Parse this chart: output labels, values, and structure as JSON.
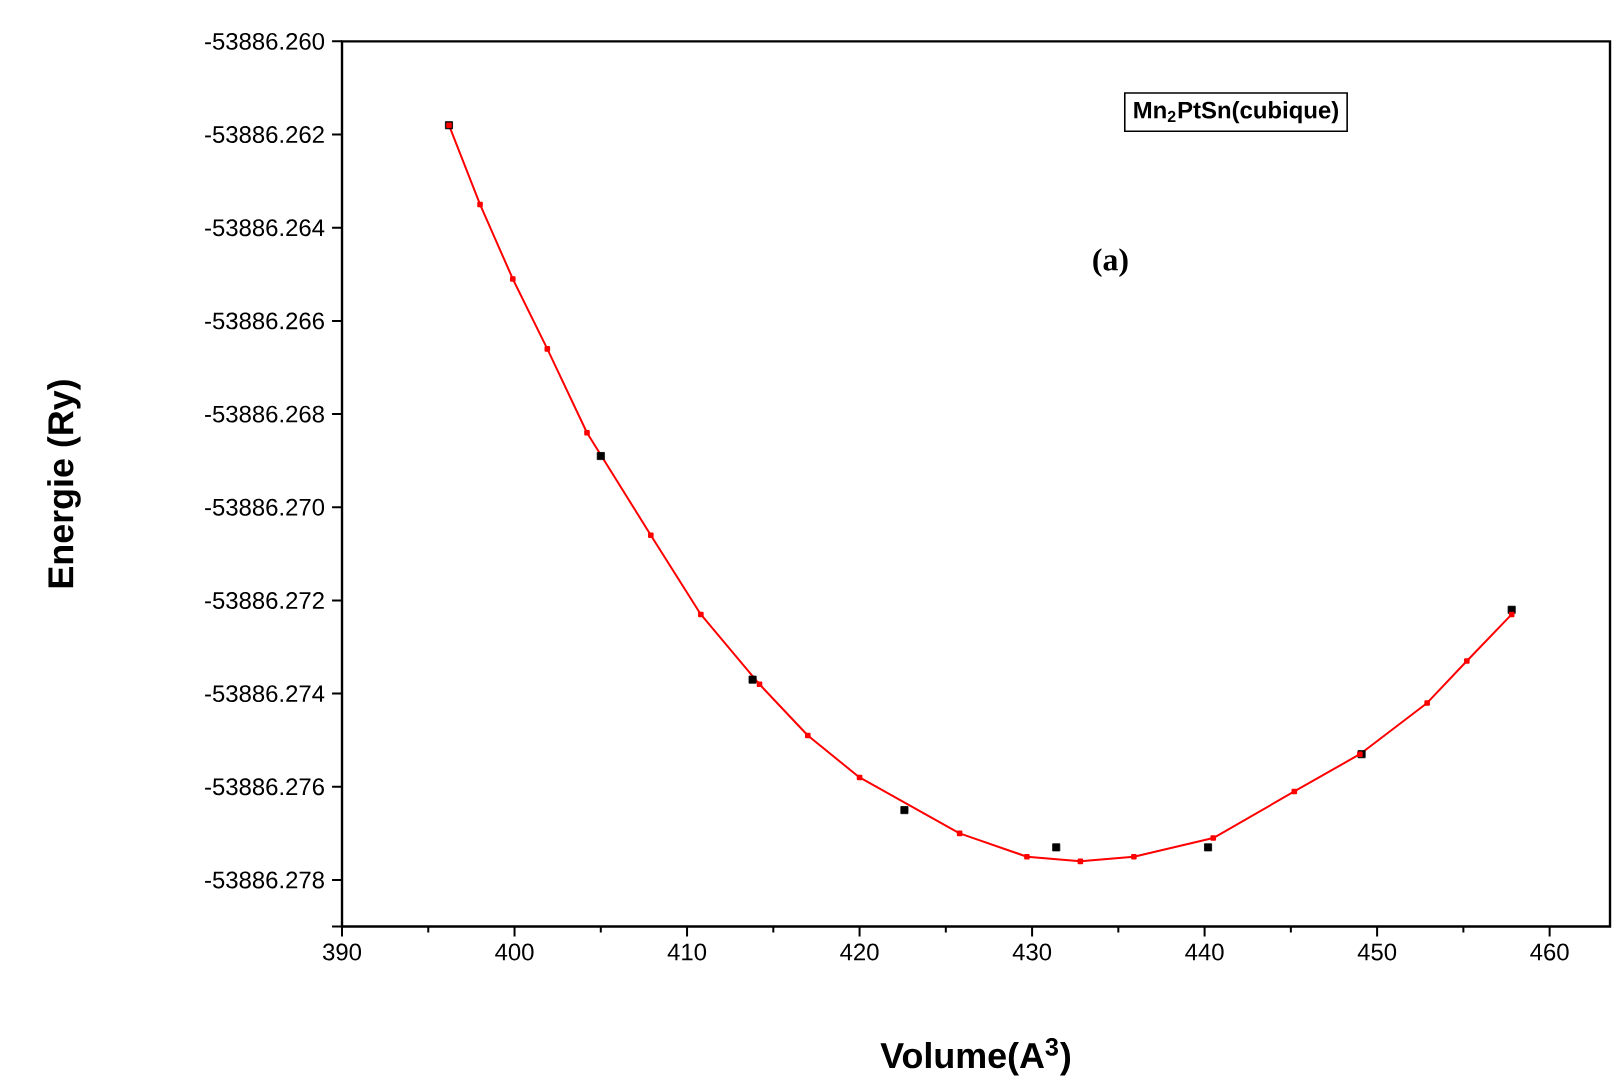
{
  "chart_data": {
    "type": "scatter",
    "xlabel": "Volume(A$^{3}$)",
    "ylabel": "Energie (Ry)",
    "annotations": [
      "Mn$_{2}$PtSn(cubique)",
      "(a)"
    ],
    "xlim": [
      390,
      463.5
    ],
    "xticks": [
      390,
      400,
      410,
      420,
      430,
      440,
      450,
      460
    ],
    "ylim": [
      -53886.279,
      -53886.26
    ],
    "yticks": [
      {
        "value": -53886.279,
        "label": null
      },
      -53886.278,
      -53886.276,
      -53886.274,
      -53886.272,
      {
        "value": -53886.27,
        "label": "-53886.270"
      },
      -53886.268,
      -53886.266,
      -53886.264,
      -53886.262,
      {
        "value": -53886.26,
        "label": "-53886.260"
      }
    ],
    "grid": false,
    "series": [
      {
        "type": "scatter",
        "color": "#000000",
        "marker": "square",
        "x": [
          396.2,
          405.0,
          413.8,
          422.6,
          431.4,
          440.2,
          449.1,
          457.8
        ],
        "values": [
          -53886.2618,
          -53886.2689,
          -53886.2737,
          -53886.2765,
          -53886.2773,
          -53886.2773,
          -53886.2753,
          -53886.2722
        ]
      },
      {
        "type": "line",
        "color": "#ff0000",
        "marker": "square",
        "line_style": "solid",
        "x": [
          396.2,
          398.0,
          399.9,
          401.9,
          404.2,
          407.9,
          410.8,
          414.2,
          417.0,
          420.0,
          425.8,
          429.7,
          432.8,
          435.9,
          440.5,
          445.2,
          449.0,
          452.9,
          455.2,
          457.8
        ],
        "values": [
          -53886.2618,
          -53886.2635,
          -53886.2651,
          -53886.2666,
          -53886.2684,
          -53886.2706,
          -53886.2723,
          -53886.2738,
          -53886.2749,
          -53886.2758,
          -53886.277,
          -53886.2775,
          -53886.2776,
          -53886.2775,
          -53886.2771,
          -53886.2761,
          -53886.2753,
          -53886.2742,
          -53886.2733,
          -53886.2723
        ]
      }
    ]
  }
}
